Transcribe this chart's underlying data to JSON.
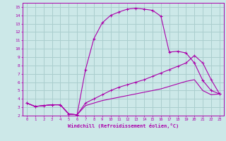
{
  "bg_color": "#cce8e8",
  "grid_color": "#aacece",
  "line_color": "#aa00aa",
  "xlabel": "Windchill (Refroidissement éolien,°C)",
  "xlim": [
    -0.5,
    23.5
  ],
  "ylim": [
    2,
    15.5
  ],
  "xticks": [
    0,
    1,
    2,
    3,
    4,
    5,
    6,
    7,
    8,
    9,
    10,
    11,
    12,
    13,
    14,
    15,
    16,
    17,
    18,
    19,
    20,
    21,
    22,
    23
  ],
  "yticks": [
    2,
    3,
    4,
    5,
    6,
    7,
    8,
    9,
    10,
    11,
    12,
    13,
    14,
    15
  ],
  "series1_x": [
    0,
    1,
    2,
    3,
    4,
    5,
    6,
    7,
    8,
    9,
    10,
    11,
    12,
    13,
    14,
    15,
    16,
    17,
    18,
    19,
    20,
    21,
    22,
    23
  ],
  "series1_y": [
    3.5,
    3.1,
    3.2,
    3.3,
    3.3,
    2.2,
    2.1,
    7.5,
    11.2,
    13.1,
    14.0,
    14.4,
    14.75,
    14.85,
    14.75,
    14.6,
    13.9,
    9.6,
    9.7,
    9.5,
    8.3,
    6.2,
    5.0,
    4.6
  ],
  "series2_x": [
    0,
    1,
    2,
    3,
    4,
    5,
    6,
    7,
    8,
    9,
    10,
    11,
    12,
    13,
    14,
    15,
    16,
    17,
    18,
    19,
    20,
    21,
    22,
    23
  ],
  "series2_y": [
    3.5,
    3.1,
    3.2,
    3.3,
    3.3,
    2.2,
    2.1,
    3.5,
    4.0,
    4.5,
    5.0,
    5.4,
    5.7,
    6.0,
    6.3,
    6.7,
    7.1,
    7.5,
    7.9,
    8.3,
    9.2,
    8.3,
    6.3,
    4.6
  ],
  "series3_x": [
    0,
    1,
    2,
    3,
    4,
    5,
    6,
    7,
    8,
    9,
    10,
    11,
    12,
    13,
    14,
    15,
    16,
    17,
    18,
    19,
    20,
    21,
    22,
    23
  ],
  "series3_y": [
    3.5,
    3.1,
    3.2,
    3.3,
    3.3,
    2.2,
    2.1,
    3.2,
    3.5,
    3.8,
    4.0,
    4.2,
    4.4,
    4.6,
    4.8,
    5.0,
    5.2,
    5.5,
    5.8,
    6.1,
    6.3,
    5.0,
    4.5,
    4.6
  ]
}
